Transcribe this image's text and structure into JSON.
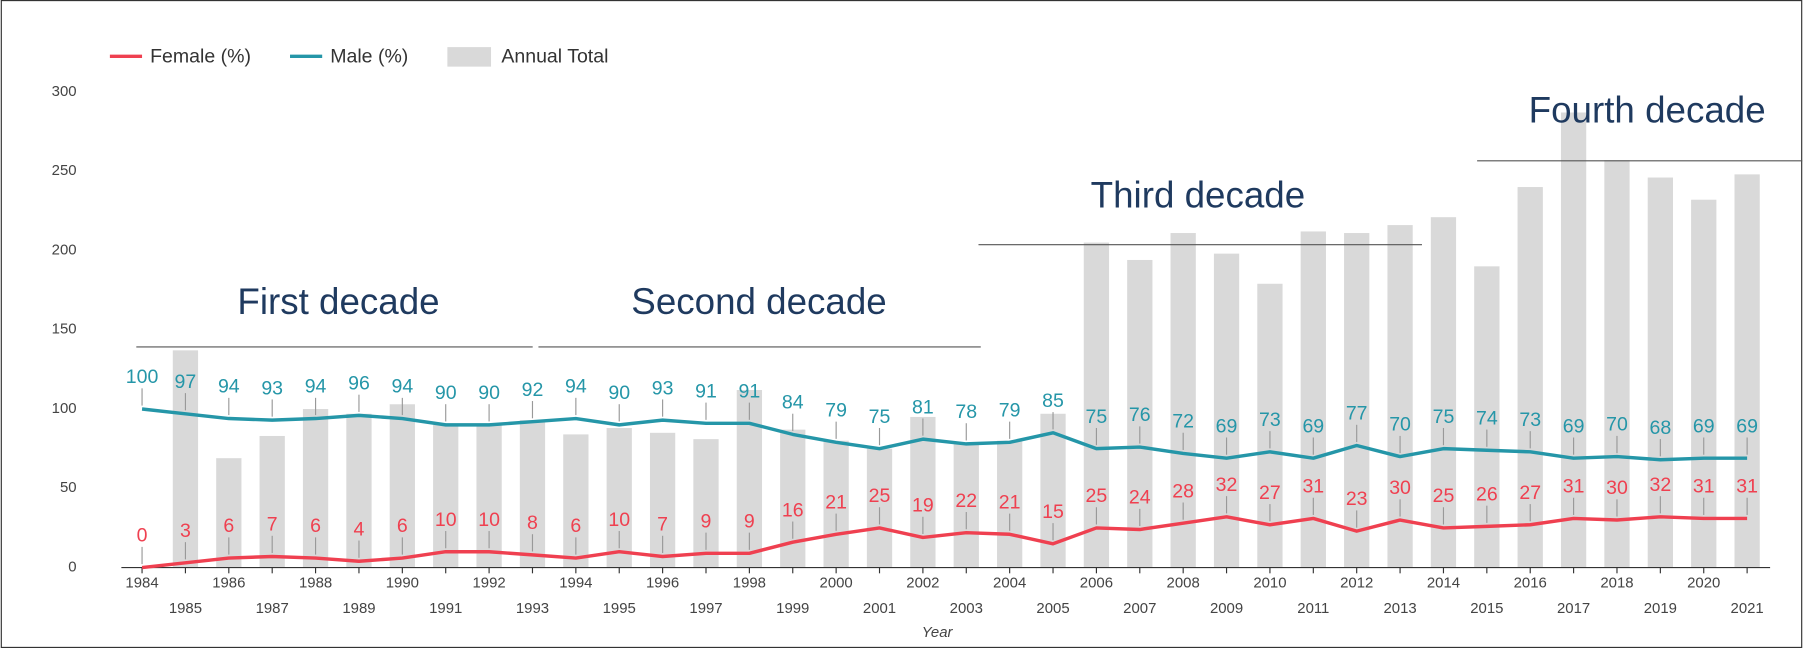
{
  "chart_data": {
    "type": "bar-line",
    "x_label": "Year",
    "categories": [
      "1984",
      "1985",
      "1986",
      "1987",
      "1988",
      "1989",
      "1990",
      "1991",
      "1992",
      "1993",
      "1994",
      "1995",
      "1996",
      "1997",
      "1998",
      "1999",
      "2000",
      "2001",
      "2002",
      "2003",
      "2004",
      "2005",
      "2006",
      "2007",
      "2008",
      "2009",
      "2010",
      "2011",
      "2012",
      "2013",
      "2014",
      "2015",
      "2016",
      "2017",
      "2018",
      "2019",
      "2020",
      "2021"
    ],
    "series": [
      {
        "name": "Female (%)",
        "kind": "line",
        "color": "#ef4050",
        "values": [
          0,
          3,
          6,
          7,
          6,
          4,
          6,
          10,
          10,
          8,
          6,
          10,
          7,
          9,
          9,
          16,
          21,
          25,
          19,
          22,
          21,
          15,
          25,
          24,
          28,
          32,
          27,
          31,
          23,
          30,
          25,
          26,
          27,
          31,
          30,
          32,
          31,
          31
        ]
      },
      {
        "name": "Male (%)",
        "kind": "line",
        "color": "#2596a8",
        "values": [
          100,
          97,
          94,
          93,
          94,
          96,
          94,
          90,
          90,
          92,
          94,
          90,
          93,
          91,
          91,
          84,
          79,
          75,
          81,
          78,
          79,
          85,
          75,
          76,
          72,
          69,
          73,
          69,
          77,
          70,
          75,
          74,
          73,
          69,
          70,
          68,
          69,
          69
        ]
      },
      {
        "name": "Annual Total",
        "kind": "bar",
        "color": "#d9d9d9",
        "values": [
          null,
          137,
          69,
          83,
          100,
          97,
          103,
          90,
          90,
          93,
          84,
          88,
          85,
          81,
          112,
          87,
          80,
          75,
          95,
          78,
          80,
          97,
          205,
          194,
          211,
          198,
          179,
          212,
          211,
          216,
          221,
          190,
          240,
          287,
          257,
          246,
          232,
          248
        ]
      }
    ],
    "ylim": [
      0,
      300
    ],
    "yticks": [
      0,
      50,
      100,
      150,
      200,
      250,
      300
    ],
    "annotations": [
      "First decade",
      "Second decade",
      "Third decade",
      "Fourth decade"
    ],
    "legend": "top-left"
  }
}
